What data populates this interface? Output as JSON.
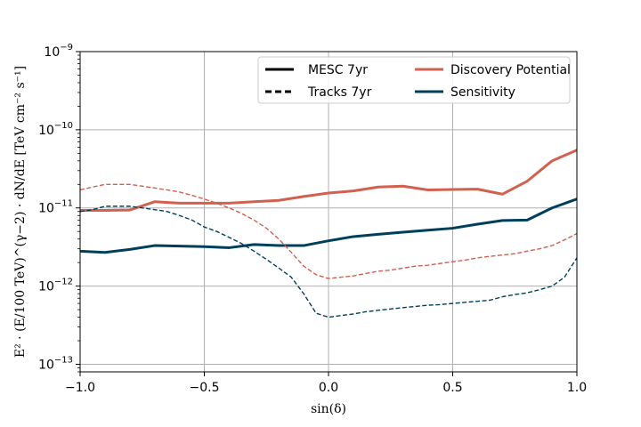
{
  "chart_data": {
    "type": "line",
    "xlabel": "sin(δ)",
    "ylabel": "E² · (E/100 TeV)^(γ−2) · dN/dE  [TeV cm⁻² s⁻¹]",
    "xlim": [
      -1.0,
      1.0
    ],
    "ylim": [
      8e-14,
      1e-09
    ],
    "yscale": "log",
    "grid": true,
    "x_ticks": [
      "−1.0",
      "−0.5",
      "0.0",
      "0.5",
      "1.0"
    ],
    "y_ticks": [
      {
        "base": "10",
        "exp": "−13"
      },
      {
        "base": "10",
        "exp": "−12"
      },
      {
        "base": "10",
        "exp": "−11"
      },
      {
        "base": "10",
        "exp": "−10"
      },
      {
        "base": "10",
        "exp": "−9"
      }
    ],
    "legend": {
      "placement": "top-right",
      "entries": [
        {
          "label": "MESC 7yr",
          "style": "solid",
          "color": "#000000"
        },
        {
          "label": "Discovery Potential",
          "style": "solid",
          "color": "#d1604f"
        },
        {
          "label": "Tracks 7yr",
          "style": "dashed",
          "color": "#000000"
        },
        {
          "label": "Sensitivity",
          "style": "solid",
          "color": "#003f5c"
        }
      ]
    },
    "series": [
      {
        "name": "MESC 7yr Discovery Potential",
        "color": "#d1604f",
        "style": "solid",
        "x": [
          -1.0,
          -0.9,
          -0.8,
          -0.7,
          -0.6,
          -0.5,
          -0.4,
          -0.3,
          -0.2,
          -0.1,
          0.0,
          0.1,
          0.2,
          0.3,
          0.4,
          0.5,
          0.6,
          0.7,
          0.8,
          0.9,
          1.0
        ],
        "y": [
          9.3e-12,
          9.3e-12,
          9.4e-12,
          1.2e-11,
          1.15e-11,
          1.15e-11,
          1.15e-11,
          1.2e-11,
          1.25e-11,
          1.4e-11,
          1.55e-11,
          1.65e-11,
          1.85e-11,
          1.9e-11,
          1.7e-11,
          1.72e-11,
          1.74e-11,
          1.5e-11,
          2.2e-11,
          4e-11,
          5.5e-11
        ]
      },
      {
        "name": "MESC 7yr Sensitivity",
        "color": "#003f5c",
        "style": "solid",
        "x": [
          -1.0,
          -0.9,
          -0.8,
          -0.7,
          -0.6,
          -0.5,
          -0.4,
          -0.3,
          -0.2,
          -0.1,
          0.0,
          0.1,
          0.2,
          0.3,
          0.4,
          0.5,
          0.6,
          0.7,
          0.8,
          0.9,
          1.0
        ],
        "y": [
          2.8e-12,
          2.7e-12,
          2.95e-12,
          3.3e-12,
          3.25e-12,
          3.2e-12,
          3.1e-12,
          3.4e-12,
          3.3e-12,
          3.3e-12,
          3.8e-12,
          4.3e-12,
          4.6e-12,
          4.9e-12,
          5.2e-12,
          5.5e-12,
          6.2e-12,
          6.9e-12,
          7e-12,
          1e-11,
          1.3e-11
        ]
      },
      {
        "name": "Tracks 7yr Discovery Potential",
        "color": "#d1604f",
        "style": "dashed",
        "x": [
          -1.0,
          -0.95,
          -0.9,
          -0.85,
          -0.8,
          -0.75,
          -0.7,
          -0.65,
          -0.6,
          -0.55,
          -0.5,
          -0.45,
          -0.4,
          -0.35,
          -0.3,
          -0.25,
          -0.2,
          -0.15,
          -0.1,
          -0.05,
          0.0,
          0.05,
          0.1,
          0.15,
          0.2,
          0.25,
          0.3,
          0.35,
          0.4,
          0.45,
          0.5,
          0.55,
          0.6,
          0.65,
          0.7,
          0.75,
          0.8,
          0.85,
          0.9,
          0.95,
          1.0
        ],
        "y": [
          1.7e-11,
          1.85e-11,
          2e-11,
          2e-11,
          2e-11,
          1.9e-11,
          1.8e-11,
          1.7e-11,
          1.6e-11,
          1.45e-11,
          1.3e-11,
          1.15e-11,
          1e-11,
          8.5e-12,
          7e-12,
          5.5e-12,
          4e-12,
          2.7e-12,
          1.8e-12,
          1.4e-12,
          1.25e-12,
          1.3e-12,
          1.35e-12,
          1.45e-12,
          1.55e-12,
          1.6e-12,
          1.7e-12,
          1.8e-12,
          1.85e-12,
          1.95e-12,
          2.05e-12,
          2.15e-12,
          2.3e-12,
          2.4e-12,
          2.5e-12,
          2.6e-12,
          2.8e-12,
          3e-12,
          3.3e-12,
          3.9e-12,
          4.7e-12
        ]
      },
      {
        "name": "Tracks 7yr Sensitivity",
        "color": "#003f5c",
        "style": "dashed",
        "x": [
          -1.0,
          -0.95,
          -0.9,
          -0.85,
          -0.8,
          -0.75,
          -0.7,
          -0.65,
          -0.6,
          -0.55,
          -0.5,
          -0.45,
          -0.4,
          -0.35,
          -0.3,
          -0.25,
          -0.2,
          -0.15,
          -0.1,
          -0.05,
          0.0,
          0.05,
          0.1,
          0.15,
          0.2,
          0.25,
          0.3,
          0.35,
          0.4,
          0.45,
          0.5,
          0.55,
          0.6,
          0.65,
          0.7,
          0.75,
          0.8,
          0.85,
          0.9,
          0.95,
          1.0
        ],
        "y": [
          9e-12,
          9.5e-12,
          1.05e-11,
          1.05e-11,
          1.05e-11,
          1e-11,
          9.5e-12,
          9e-12,
          8e-12,
          7e-12,
          5.7e-12,
          5e-12,
          4.2e-12,
          3.5e-12,
          2.8e-12,
          2.2e-12,
          1.7e-12,
          1.3e-12,
          8e-13,
          4.5e-13,
          4e-13,
          4.2e-13,
          4.4e-13,
          4.7e-13,
          4.9e-13,
          5.1e-13,
          5.3e-13,
          5.5e-13,
          5.7e-13,
          5.8e-13,
          6e-13,
          6.2e-13,
          6.4e-13,
          6.6e-13,
          7.3e-13,
          7.8e-13,
          8.2e-13,
          9e-13,
          1e-12,
          1.3e-12,
          2.3e-12
        ]
      }
    ]
  }
}
